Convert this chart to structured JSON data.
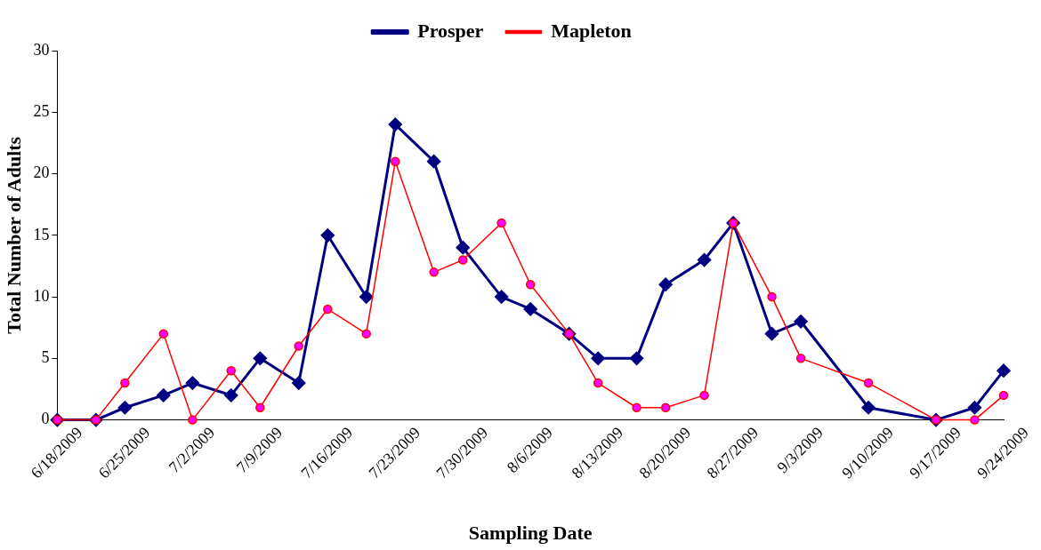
{
  "chart_data": {
    "type": "line",
    "xlabel": "Sampling Date",
    "ylabel": "Total Number of Adults",
    "x": [
      "2009-06-18",
      "2009-06-22",
      "2009-06-25",
      "2009-06-29",
      "2009-07-02",
      "2009-07-06",
      "2009-07-09",
      "2009-07-13",
      "2009-07-16",
      "2009-07-20",
      "2009-07-23",
      "2009-07-27",
      "2009-07-30",
      "2009-08-03",
      "2009-08-06",
      "2009-08-10",
      "2009-08-13",
      "2009-08-17",
      "2009-08-20",
      "2009-08-24",
      "2009-08-27",
      "2009-08-31",
      "2009-09-03",
      "2009-09-10",
      "2009-09-17",
      "2009-09-21",
      "2009-09-24"
    ],
    "series": [
      {
        "name": "Prosper",
        "color": "#000080",
        "marker": "diamond",
        "values": [
          0,
          0,
          1,
          2,
          3,
          2,
          5,
          3,
          15,
          10,
          24,
          21,
          14,
          10,
          9,
          7,
          5,
          5,
          11,
          13,
          16,
          7,
          8,
          1,
          0,
          1,
          4
        ]
      },
      {
        "name": "Mapleton",
        "color": "#ff0000",
        "marker": "circle",
        "values": [
          0,
          0,
          3,
          7,
          0,
          4,
          1,
          6,
          9,
          7,
          21,
          12,
          13,
          16,
          11,
          7,
          3,
          1,
          1,
          2,
          16,
          10,
          5,
          3,
          0,
          0,
          2
        ]
      }
    ],
    "xlim": [
      "2009-06-18",
      "2009-09-24"
    ],
    "xticks": [
      {
        "value": "2009-06-18",
        "label": "6/18/2009"
      },
      {
        "value": "2009-06-25",
        "label": "6/25/2009"
      },
      {
        "value": "2009-07-02",
        "label": "7/2/2009"
      },
      {
        "value": "2009-07-09",
        "label": "7/9/2009"
      },
      {
        "value": "2009-07-16",
        "label": "7/16/2009"
      },
      {
        "value": "2009-07-23",
        "label": "7/23/2009"
      },
      {
        "value": "2009-07-30",
        "label": "7/30/2009"
      },
      {
        "value": "2009-08-06",
        "label": "8/6/2009"
      },
      {
        "value": "2009-08-13",
        "label": "8/13/2009"
      },
      {
        "value": "2009-08-20",
        "label": "8/20/2009"
      },
      {
        "value": "2009-08-27",
        "label": "8/27/2009"
      },
      {
        "value": "2009-09-03",
        "label": "9/3/2009"
      },
      {
        "value": "2009-09-10",
        "label": "9/10/2009"
      },
      {
        "value": "2009-09-17",
        "label": "9/17/2009"
      },
      {
        "value": "2009-09-24",
        "label": "9/24/2009"
      }
    ],
    "ylim": [
      0,
      30
    ],
    "yticks": [
      0,
      5,
      10,
      15,
      20,
      25,
      30
    ],
    "grid": false,
    "legend": "top",
    "line_style": "solid"
  }
}
